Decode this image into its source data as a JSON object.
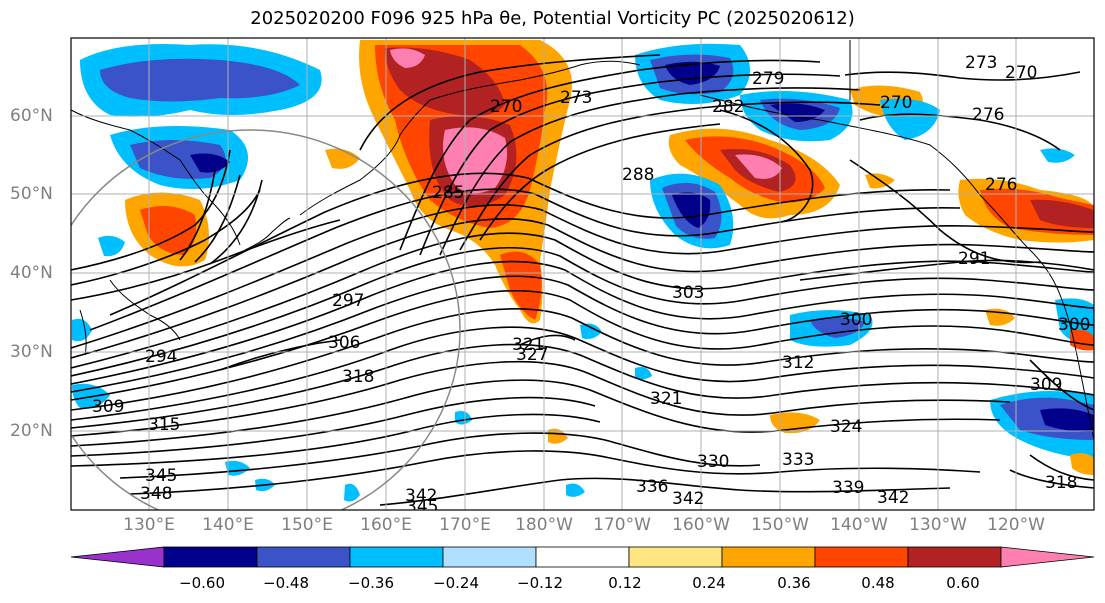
{
  "title": "2025020200 F096 925 hPa θe, Potential Vorticity PC (2025020612)",
  "map": {
    "lat_labels": [
      "60°N",
      "50°N",
      "40°N",
      "30°N",
      "20°N"
    ],
    "lon_labels": [
      "130°E",
      "140°E",
      "150°E",
      "160°E",
      "170°E",
      "180°W",
      "170°W",
      "160°W",
      "150°W",
      "140°W",
      "130°W",
      "120°W"
    ],
    "contour_labels": [
      "279",
      "270",
      "273",
      "273",
      "270",
      "276",
      "282",
      "285",
      "288",
      "291",
      "294",
      "297",
      "300",
      "303",
      "306",
      "309",
      "312",
      "315",
      "318",
      "321",
      "321",
      "324",
      "327",
      "330",
      "333",
      "336",
      "339",
      "342",
      "342",
      "342",
      "345",
      "345",
      "348",
      "309",
      "270",
      "276",
      "318",
      "300"
    ]
  },
  "colorbar": {
    "colors": [
      "#9932cc",
      "#00008b",
      "#3a53c9",
      "#00bfff",
      "#b0e0ff",
      "#ffffff",
      "#ffe680",
      "#ffa500",
      "#ff4500",
      "#b22222",
      "#ff80b0"
    ],
    "tick_labels": [
      "−0.60",
      "−0.48",
      "−0.36",
      "−0.24",
      "−0.12",
      "0.12",
      "0.24",
      "0.36",
      "0.48",
      "0.60"
    ]
  }
}
